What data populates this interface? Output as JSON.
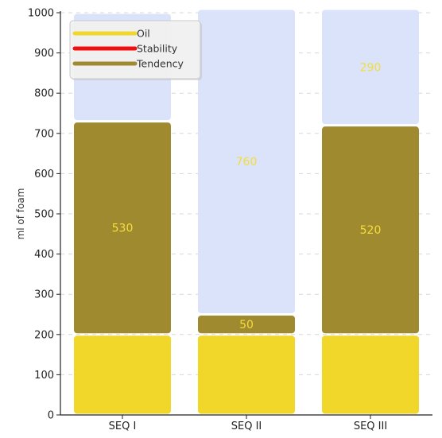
{
  "chart_data": {
    "type": "bar",
    "stacked": true,
    "categories": [
      "SEQ I",
      "SEQ II",
      "SEQ III"
    ],
    "series": [
      {
        "name": "Oil",
        "values": [
          200,
          200,
          200
        ],
        "color": "#f2d72b",
        "labels": [
          "",
          "",
          ""
        ]
      },
      {
        "name": "Tendency",
        "values": [
          530,
          50,
          520
        ],
        "color": "#a08a30",
        "labels": [
          "530",
          "50",
          "520"
        ]
      },
      {
        "name": "Stability",
        "values": [
          0,
          0,
          0
        ],
        "color": "#ee1111",
        "labels": [
          "",
          "",
          ""
        ]
      },
      {
        "name": "",
        "values": [
          270,
          760,
          290
        ],
        "color": "#dbe3fb",
        "labels": [
          "",
          "760",
          "290"
        ]
      }
    ],
    "legend": {
      "placement": "top-left",
      "entries": [
        {
          "name": "Oil",
          "color": "#f2d72b"
        },
        {
          "name": "Stability",
          "color": "#ee1111"
        },
        {
          "name": "Tendency",
          "color": "#a08a30"
        }
      ]
    },
    "title": "",
    "xlabel": "",
    "ylabel": "ml of foam",
    "ylim": [
      0,
      1000
    ],
    "yticks": [
      0,
      100,
      200,
      300,
      400,
      500,
      600,
      700,
      800,
      900,
      1000
    ],
    "grid": true
  }
}
